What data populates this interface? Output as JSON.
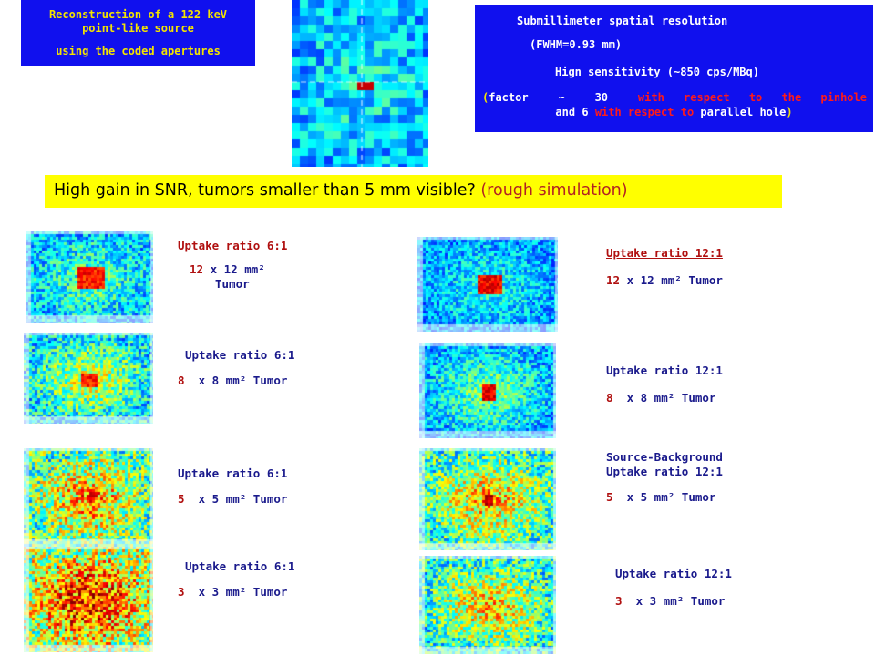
{
  "top_left_box": {
    "line1": "Reconstruction of a 122 keV",
    "line2": "point-like source",
    "line3": "using the coded apertures"
  },
  "top_right_box": {
    "line1": "Submillimeter spatial resolution",
    "line2": "(FWHM=0.93 mm)",
    "line3": "Hign sensitivity (~850 cps/MBq)",
    "line4_open": "(",
    "line4_factor": "factor",
    "line4_tilde": "~",
    "line4_30": "30",
    "line4_rest": "with respect to the pinhole",
    "line5_and": "and",
    "line5_6": "6",
    "line5_with": "with respect to",
    "line5_parallel": "parallel hole",
    "line5_close": ")"
  },
  "banner": {
    "main": "High gain in SNR, tumors smaller than 5 mm visible?",
    "rough": "(rough simulation)"
  },
  "left_column": [
    {
      "line1": "Uptake ratio 6:1",
      "size": "12",
      "line2_rest": " x 12 mm² ",
      "line3": "Tumor"
    },
    {
      "line1": "Uptake ratio 6:1",
      "size": "8",
      "line2_rest": "  x 8 mm² Tumor"
    },
    {
      "line1": "Uptake ratio 6:1",
      "size": "5",
      "line2_rest": "  x 5 mm² Tumor"
    },
    {
      "line1": "Uptake ratio 6:1",
      "size": "3",
      "line2_rest": "  x 3 mm² Tumor"
    }
  ],
  "right_column": [
    {
      "line1": "Uptake ratio 12:1",
      "size": "12",
      "line2_rest": " x 12 mm² Tumor"
    },
    {
      "line1": "Uptake ratio 12:1",
      "size": "8",
      "line2_rest": "  x 8 mm² Tumor"
    },
    {
      "line0": "Source-Background",
      "line1": "Uptake ratio 12:1",
      "size": "5",
      "line2_rest": "  x 5 mm² Tumor"
    },
    {
      "line1": "Uptake ratio 12:1",
      "size": "3",
      "line2_rest": "  x 3 mm² Tumor"
    }
  ],
  "colors": {
    "box_blue": "#1010ee",
    "box_yellow_text": "#f4e400",
    "banner_yellow": "#ffff00",
    "label_red": "#b01010",
    "label_navy": "#1a1a8c"
  }
}
